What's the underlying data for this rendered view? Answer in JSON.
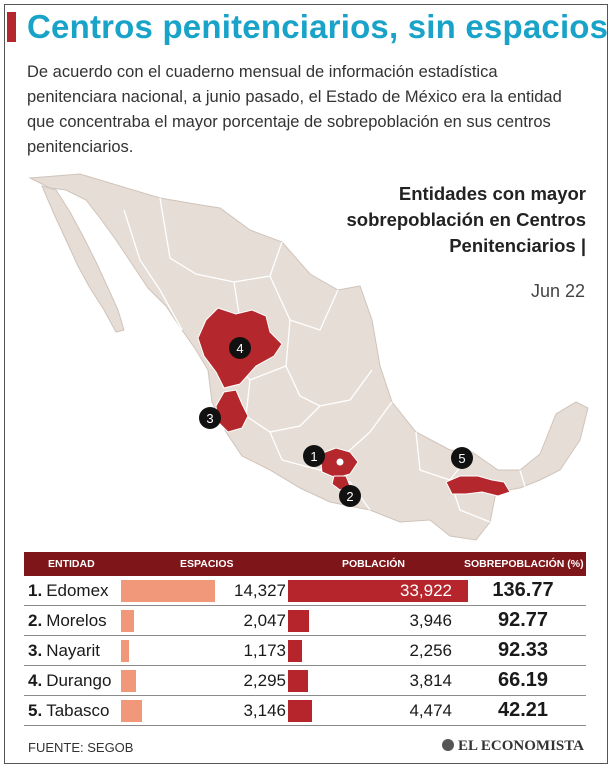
{
  "header": {
    "title": "Centros penitenciarios, sin espacios",
    "intro": "De acuerdo con el cuaderno mensual de información estadística penitenciara nacional, a junio pasado, el Estado de México era la entidad que concentraba el mayor porcentaje de sobrepoblación en sus centros penitenciarios."
  },
  "map": {
    "title": "Entidades con mayor sobrepoblación en Centros Penitenciarios |",
    "subtitle": "Jun 22",
    "markers": [
      "1",
      "2",
      "3",
      "4",
      "5"
    ],
    "colors": {
      "land": "#e6ddd6",
      "highlight": "#b4272c",
      "border": "#ffffff"
    }
  },
  "table": {
    "headers": {
      "entidad": "ENTIDAD",
      "espacios": "ESPACIOS",
      "poblacion": "POBLACIÓN",
      "sobrepoblacion": "SOBREPOBLACIÓN (%)"
    },
    "rows": [
      {
        "rank": "1.",
        "name": "Edomex",
        "espacios": "14,327",
        "poblacion": "33,922",
        "sobre": "136.77"
      },
      {
        "rank": "2.",
        "name": "Morelos",
        "espacios": "2,047",
        "poblacion": "3,946",
        "sobre": "92.77"
      },
      {
        "rank": "3.",
        "name": "Nayarit",
        "espacios": "1,173",
        "poblacion": "2,256",
        "sobre": "92.33"
      },
      {
        "rank": "4.",
        "name": "Durango",
        "espacios": "2,295",
        "poblacion": "3,814",
        "sobre": "66.19"
      },
      {
        "rank": "5.",
        "name": "Tabasco",
        "espacios": "3,146",
        "poblacion": "4,474",
        "sobre": "42.21"
      }
    ]
  },
  "chart_data": {
    "type": "table",
    "columns": [
      "ENTIDAD",
      "ESPACIOS",
      "POBLACIÓN",
      "SOBREPOBLACIÓN (%)"
    ],
    "categories": [
      "Edomex",
      "Morelos",
      "Nayarit",
      "Durango",
      "Tabasco"
    ],
    "series": [
      {
        "name": "ESPACIOS",
        "values": [
          14327,
          2047,
          1173,
          2295,
          3146
        ]
      },
      {
        "name": "POBLACIÓN",
        "values": [
          33922,
          3946,
          2256,
          3814,
          4474
        ]
      },
      {
        "name": "SOBREPOBLACIÓN (%)",
        "values": [
          136.77,
          92.77,
          92.33,
          66.19,
          42.21
        ]
      }
    ],
    "colors": {
      "espacios": "#f2987a",
      "poblacion": "#b5252b",
      "header": "#7d1519"
    }
  },
  "footer": {
    "source": "FUENTE: SEGOB",
    "brand": "EL ECONOMISTA"
  }
}
